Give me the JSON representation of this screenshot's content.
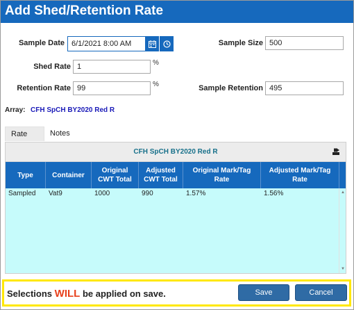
{
  "dialog": {
    "title": "Add Shed/Retention Rate"
  },
  "form": {
    "sample_date_label": "Sample Date",
    "sample_date_value": "6/1/2021 8:00 AM",
    "sample_size_label": "Sample Size",
    "sample_size_value": "500",
    "shed_rate_label": "Shed Rate",
    "shed_rate_value": "1",
    "shed_rate_unit": "%",
    "retention_rate_label": "Retention Rate",
    "retention_rate_value": "99",
    "retention_rate_unit": "%",
    "sample_retention_label": "Sample Retention",
    "sample_retention_value": "495",
    "array_label": "Array:",
    "array_value": "CFH SpCH BY2020 Red R"
  },
  "tabs": [
    {
      "label": "Rate",
      "active": true
    },
    {
      "label": "Notes",
      "active": false
    }
  ],
  "grid": {
    "title": "CFH SpCH BY2020 Red R",
    "columns": [
      "Type",
      "Container",
      "Original CWT Total",
      "Adjusted CWT Total",
      "Original Mark/Tag Rate",
      "Adjusted Mark/Tag Rate"
    ],
    "rows": [
      [
        "Sampled",
        "Vat9",
        "1000",
        "990",
        "1.57%",
        "1.56%"
      ]
    ]
  },
  "footer": {
    "message_prefix": "Selections",
    "message_emphasis": "WILL",
    "message_suffix": "be applied on save.",
    "save_label": "Save",
    "cancel_label": "Cancel"
  },
  "colors": {
    "title_bar": "#1669bd",
    "grid_body": "#c6fbfb",
    "array_value": "#1a1ab8",
    "emphasis": "#e8401c",
    "footer_border": "#ffe800",
    "button": "#2f6ba5"
  },
  "icons": {
    "date_picker": "calendar-icon",
    "time_picker": "clock-icon",
    "export": "export-icon"
  }
}
